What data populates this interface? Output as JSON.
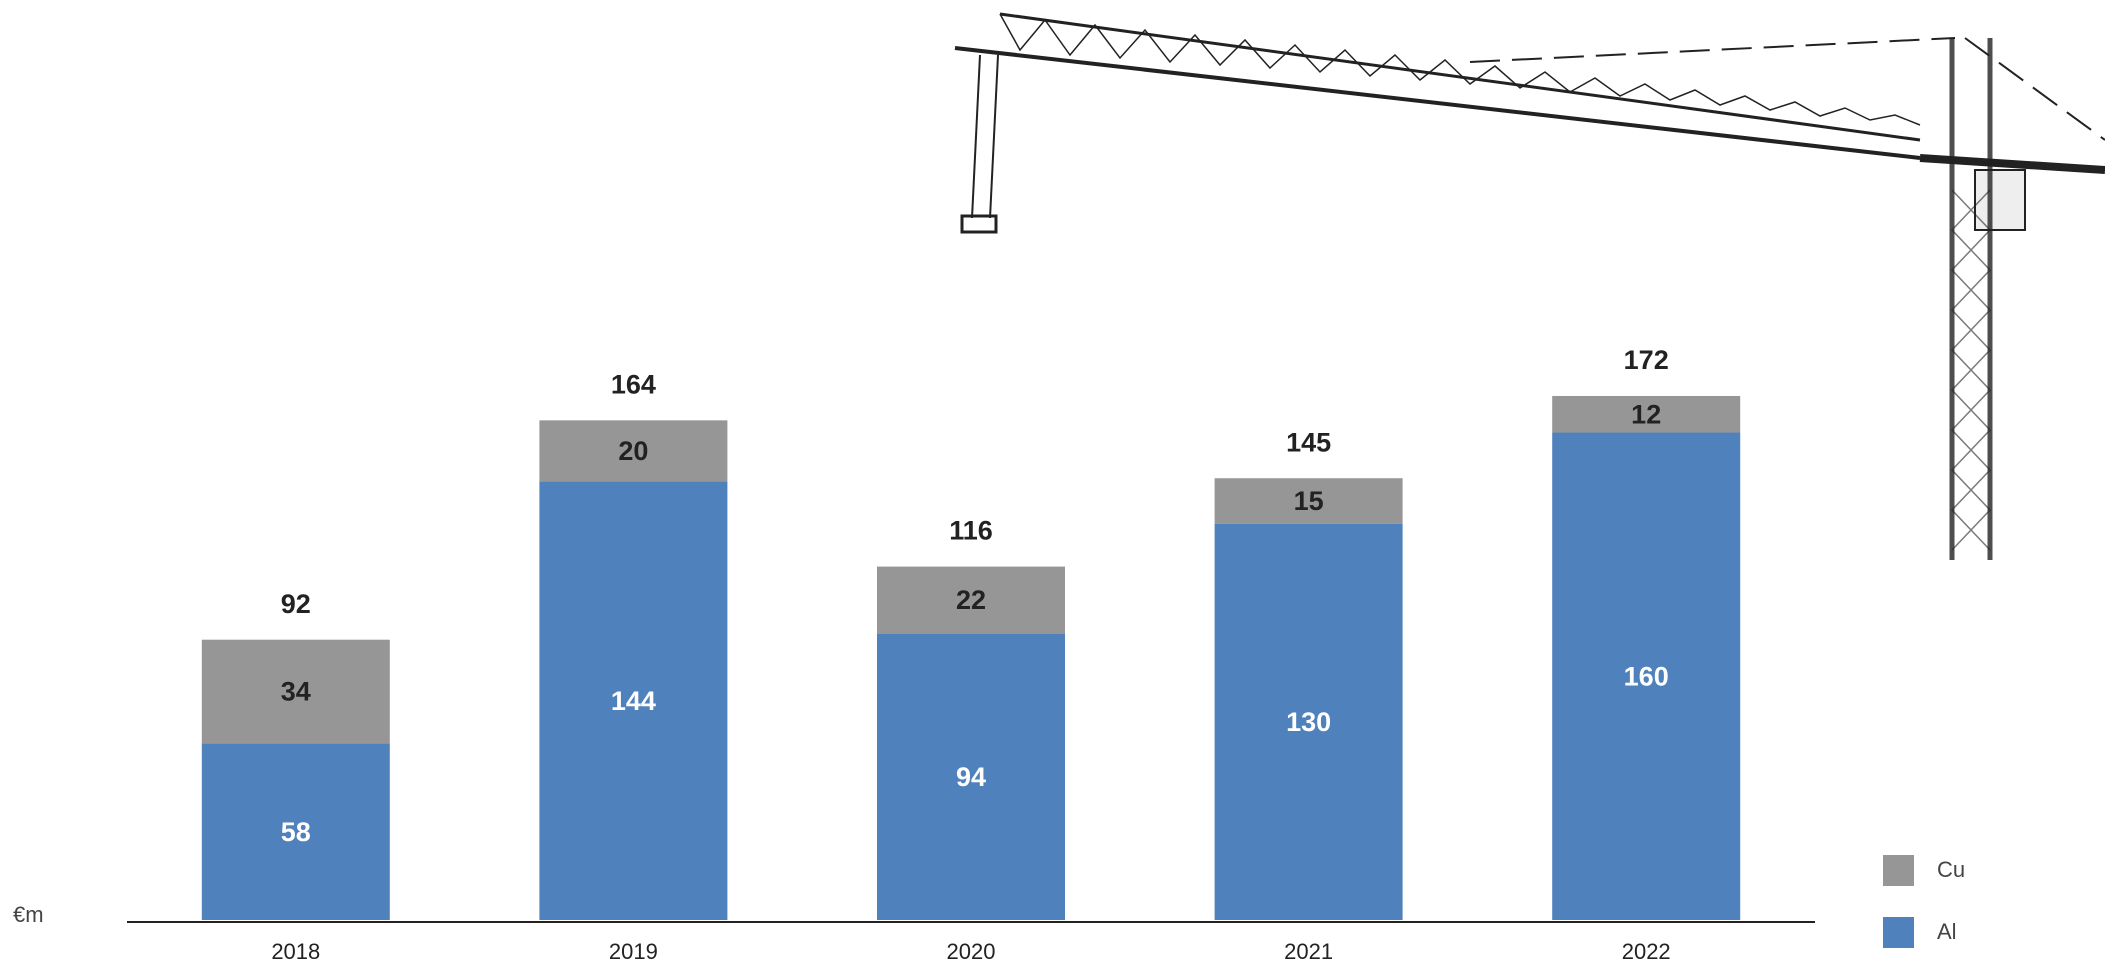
{
  "chart_data": {
    "type": "stacked-bar",
    "unit_label": "€m",
    "categories": [
      "2018",
      "2019",
      "2020",
      "2021",
      "2022"
    ],
    "series": [
      {
        "name": "Al",
        "color": "#4f81bd",
        "values": [
          58,
          144,
          94,
          130,
          160
        ]
      },
      {
        "name": "Cu",
        "color": "#969696",
        "values": [
          34,
          20,
          22,
          15,
          12
        ]
      }
    ],
    "totals": [
      92,
      164,
      116,
      145,
      172
    ],
    "ylim": [
      0,
      300
    ]
  }
}
